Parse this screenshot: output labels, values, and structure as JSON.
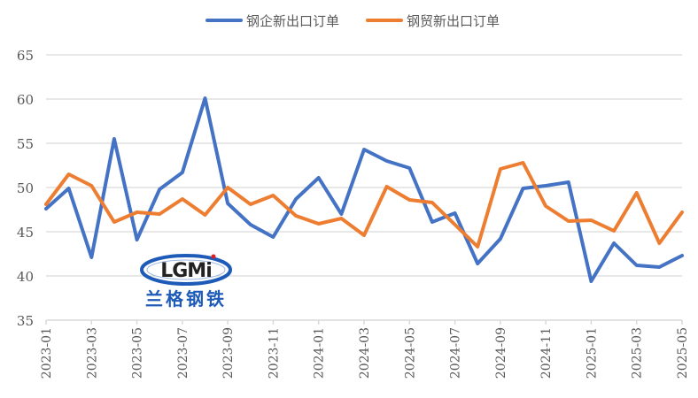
{
  "chart_data": {
    "type": "line",
    "title": "",
    "xlabel": "",
    "ylabel": "",
    "ylim": [
      35,
      65
    ],
    "yticks": [
      35,
      40,
      45,
      50,
      55,
      60,
      65
    ],
    "grid": true,
    "legend_position": "top",
    "x": [
      "2023-01",
      "2023-02",
      "2023-03",
      "2023-04",
      "2023-05",
      "2023-06",
      "2023-07",
      "2023-08",
      "2023-09",
      "2023-10",
      "2023-11",
      "2023-12",
      "2024-01",
      "2024-02",
      "2024-03",
      "2024-04",
      "2024-05",
      "2024-06",
      "2024-07",
      "2024-08",
      "2024-09",
      "2024-10",
      "2024-11",
      "2024-12",
      "2025-01",
      "2025-02",
      "2025-03",
      "2025-04",
      "2025-05"
    ],
    "xtick_labels": [
      "2023-01",
      "2023-03",
      "2023-05",
      "2023-07",
      "2023-09",
      "2023-11",
      "2024-01",
      "2024-03",
      "2024-05",
      "2024-07",
      "2024-09",
      "2024-11",
      "2025-01",
      "2025-03",
      "2025-05"
    ],
    "series": [
      {
        "name": "钢企新出口订单",
        "color": "#4472C4",
        "values": [
          47.6,
          49.9,
          42.1,
          55.5,
          44.1,
          49.8,
          51.7,
          60.1,
          48.2,
          45.8,
          44.4,
          48.7,
          51.1,
          47.0,
          54.3,
          53.0,
          52.2,
          46.1,
          47.1,
          41.4,
          44.2,
          49.9,
          50.2,
          50.6,
          39.4,
          43.7,
          41.2,
          41.0,
          42.3
        ]
      },
      {
        "name": "钢贸新出口订单",
        "color": "#ED7D31",
        "values": [
          48.1,
          51.5,
          50.2,
          46.1,
          47.2,
          47.0,
          48.7,
          46.9,
          50.0,
          48.1,
          49.1,
          46.8,
          45.9,
          46.5,
          44.6,
          50.1,
          48.6,
          48.3,
          45.8,
          43.3,
          52.1,
          52.8,
          47.9,
          46.2,
          46.3,
          45.1,
          49.4,
          43.7,
          47.2
        ]
      }
    ]
  },
  "logo": {
    "latin_text": "LGMi",
    "chinese_text": "兰格钢铁"
  },
  "colors": {
    "grid": "#D9D9D9",
    "axis_text": "#595959",
    "logo_blue": "#1E5BB8",
    "logo_red": "#E02020"
  }
}
